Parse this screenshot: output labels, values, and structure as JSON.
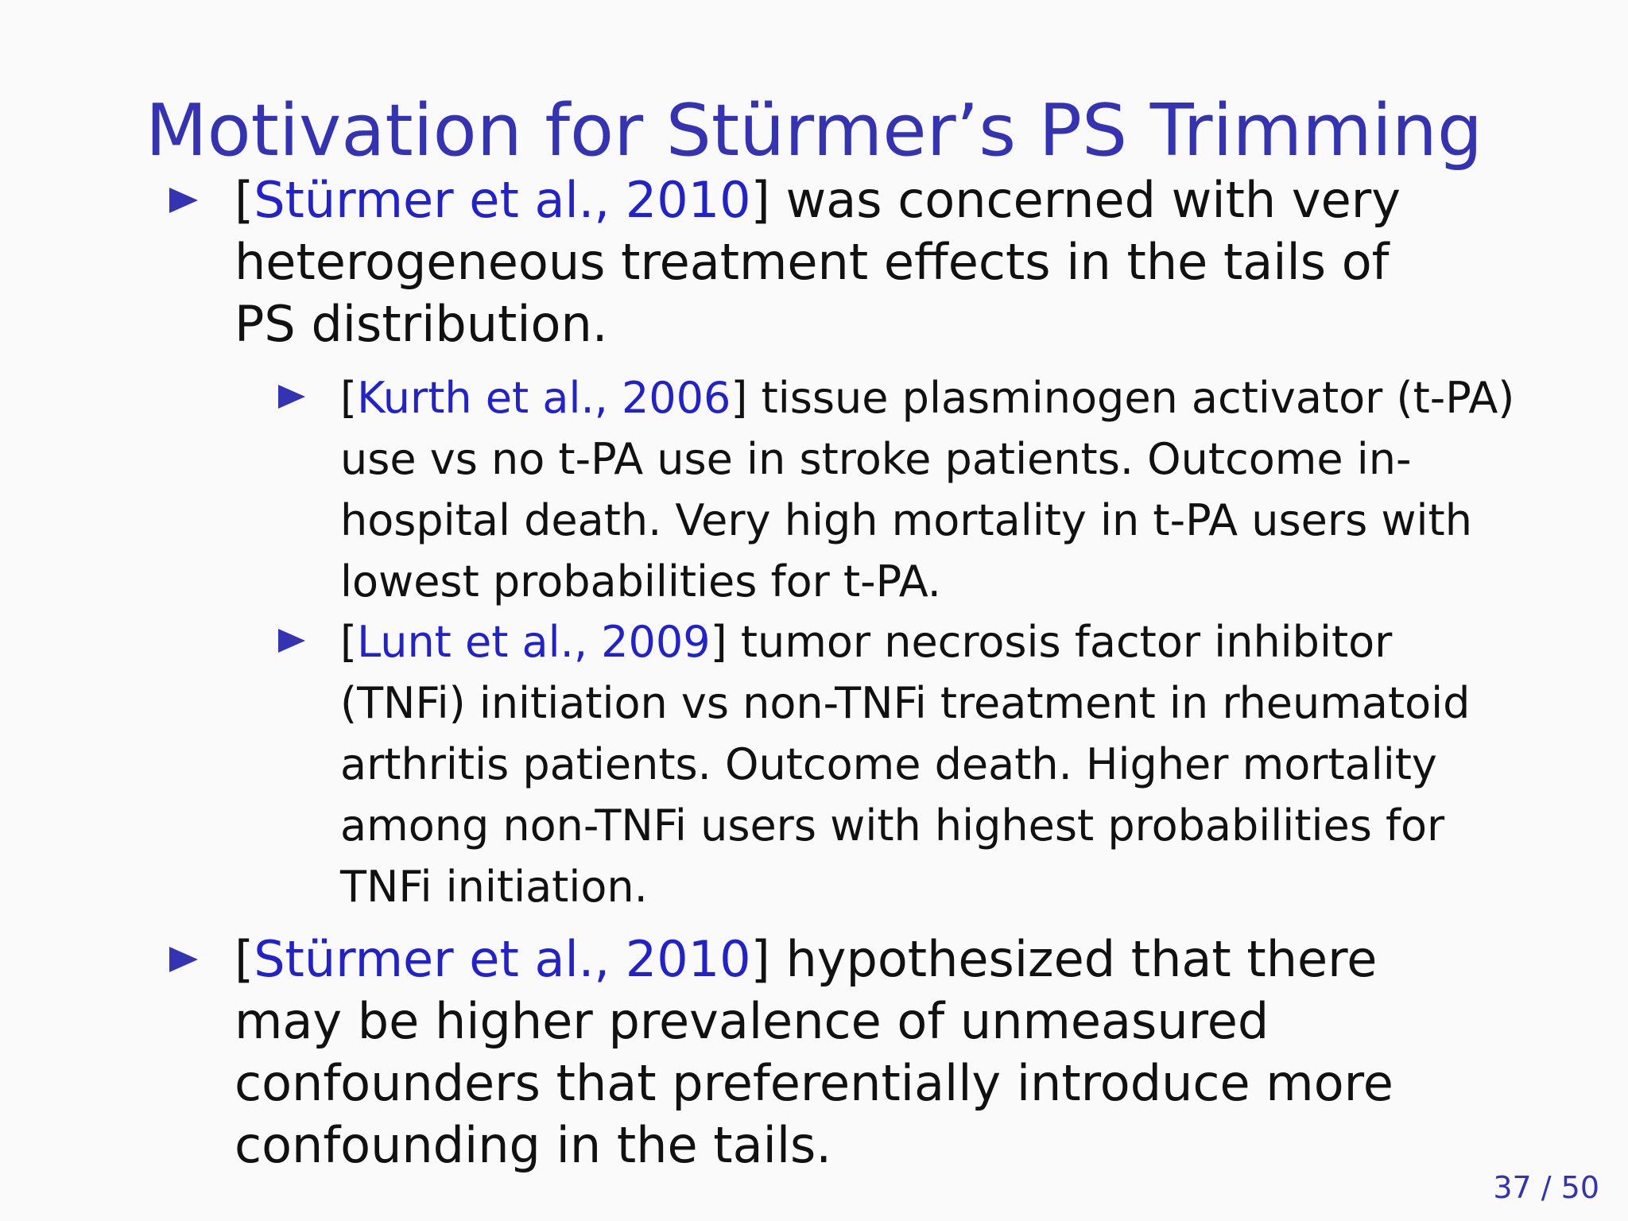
{
  "slide": {
    "title": "Motivation for Stürmer’s PS Trimming",
    "bullets": [
      {
        "open_bracket": "[",
        "citation": "Stürmer et al., 2010",
        "close_bracket": "]",
        "text": " was concerned with very heterogeneous treatment effects in the tails of PS distribution."
      },
      {
        "open_bracket": "[",
        "citation": "Kurth et al., 2006",
        "close_bracket": "]",
        "text": " tissue plasminogen activator (t-PA) use vs no t-PA use in stroke patients.  Outcome in-hospital death.  Very high mortality in t-PA users with lowest probabilities for t-PA."
      },
      {
        "open_bracket": "[",
        "citation": "Lunt et al., 2009",
        "close_bracket": "]",
        "text": " tumor necrosis factor inhibitor (TNFi) initiation vs non-TNFi treatment in rheumatoid arthritis patients.  Outcome death.  Higher mortality among non-TNFi users with highest probabilities for TNFi initiation."
      },
      {
        "open_bracket": "[",
        "citation": "Stürmer et al., 2010",
        "close_bracket": "]",
        "text": " hypothesized that there may be higher prevalence of unmeasured confounders that preferentially introduce more confounding in the tails."
      }
    ]
  },
  "pagination": {
    "current": "37",
    "separator": " / ",
    "total": "50"
  },
  "colors": {
    "title": "#3333b3",
    "citation": "#2222cc",
    "bullet_marker": "#3333b3",
    "text": "#111111",
    "background": "#fafafa"
  },
  "icons": {
    "bullet": "triangle-right-icon"
  }
}
